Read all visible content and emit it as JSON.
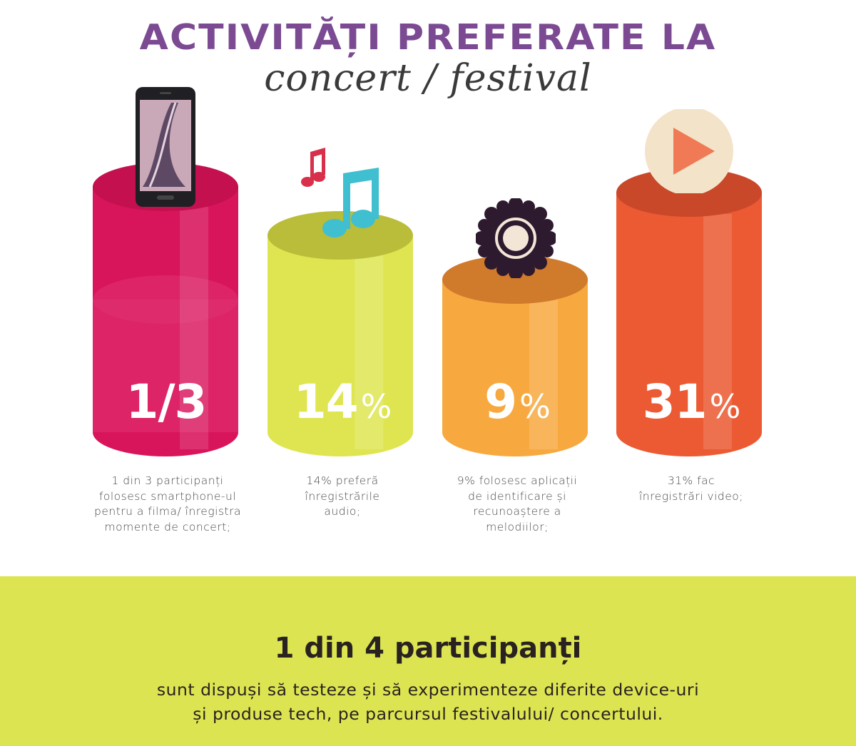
{
  "header": {
    "title": "ACTIVITĂȚI PREFERATE LA",
    "subtitle": "concert / festival"
  },
  "stats": [
    {
      "value": "1/3",
      "suffix": "",
      "caption": "1 din 3 participanți\nfolosesc smartphone-ul\npentru a filma/ înregistra\nmomente de concert;",
      "icon": "smartphone-icon",
      "color": "#d8155b"
    },
    {
      "value": "14",
      "suffix": "%",
      "caption": "14% preferă\nînregistrările\naudio;",
      "icon": "music-notes-icon",
      "color": "#dfe550"
    },
    {
      "value": "9",
      "suffix": "%",
      "caption": "9% folosesc aplicații\nde identificare și\nrecunoaștere a\nmelodiilor;",
      "icon": "song-recognition-icon",
      "color": "#f7a940"
    },
    {
      "value": "31",
      "suffix": "%",
      "caption": "31% fac\nînregistrări video;",
      "icon": "play-icon",
      "color": "#eb5a32"
    }
  ],
  "footer": {
    "title": "1 din 4 participanți",
    "text_line1": "sunt dispuși să testeze și să experimenteze diferite device-uri",
    "text_line2": "și produse tech, pe parcursul festivalului/ concertului."
  }
}
